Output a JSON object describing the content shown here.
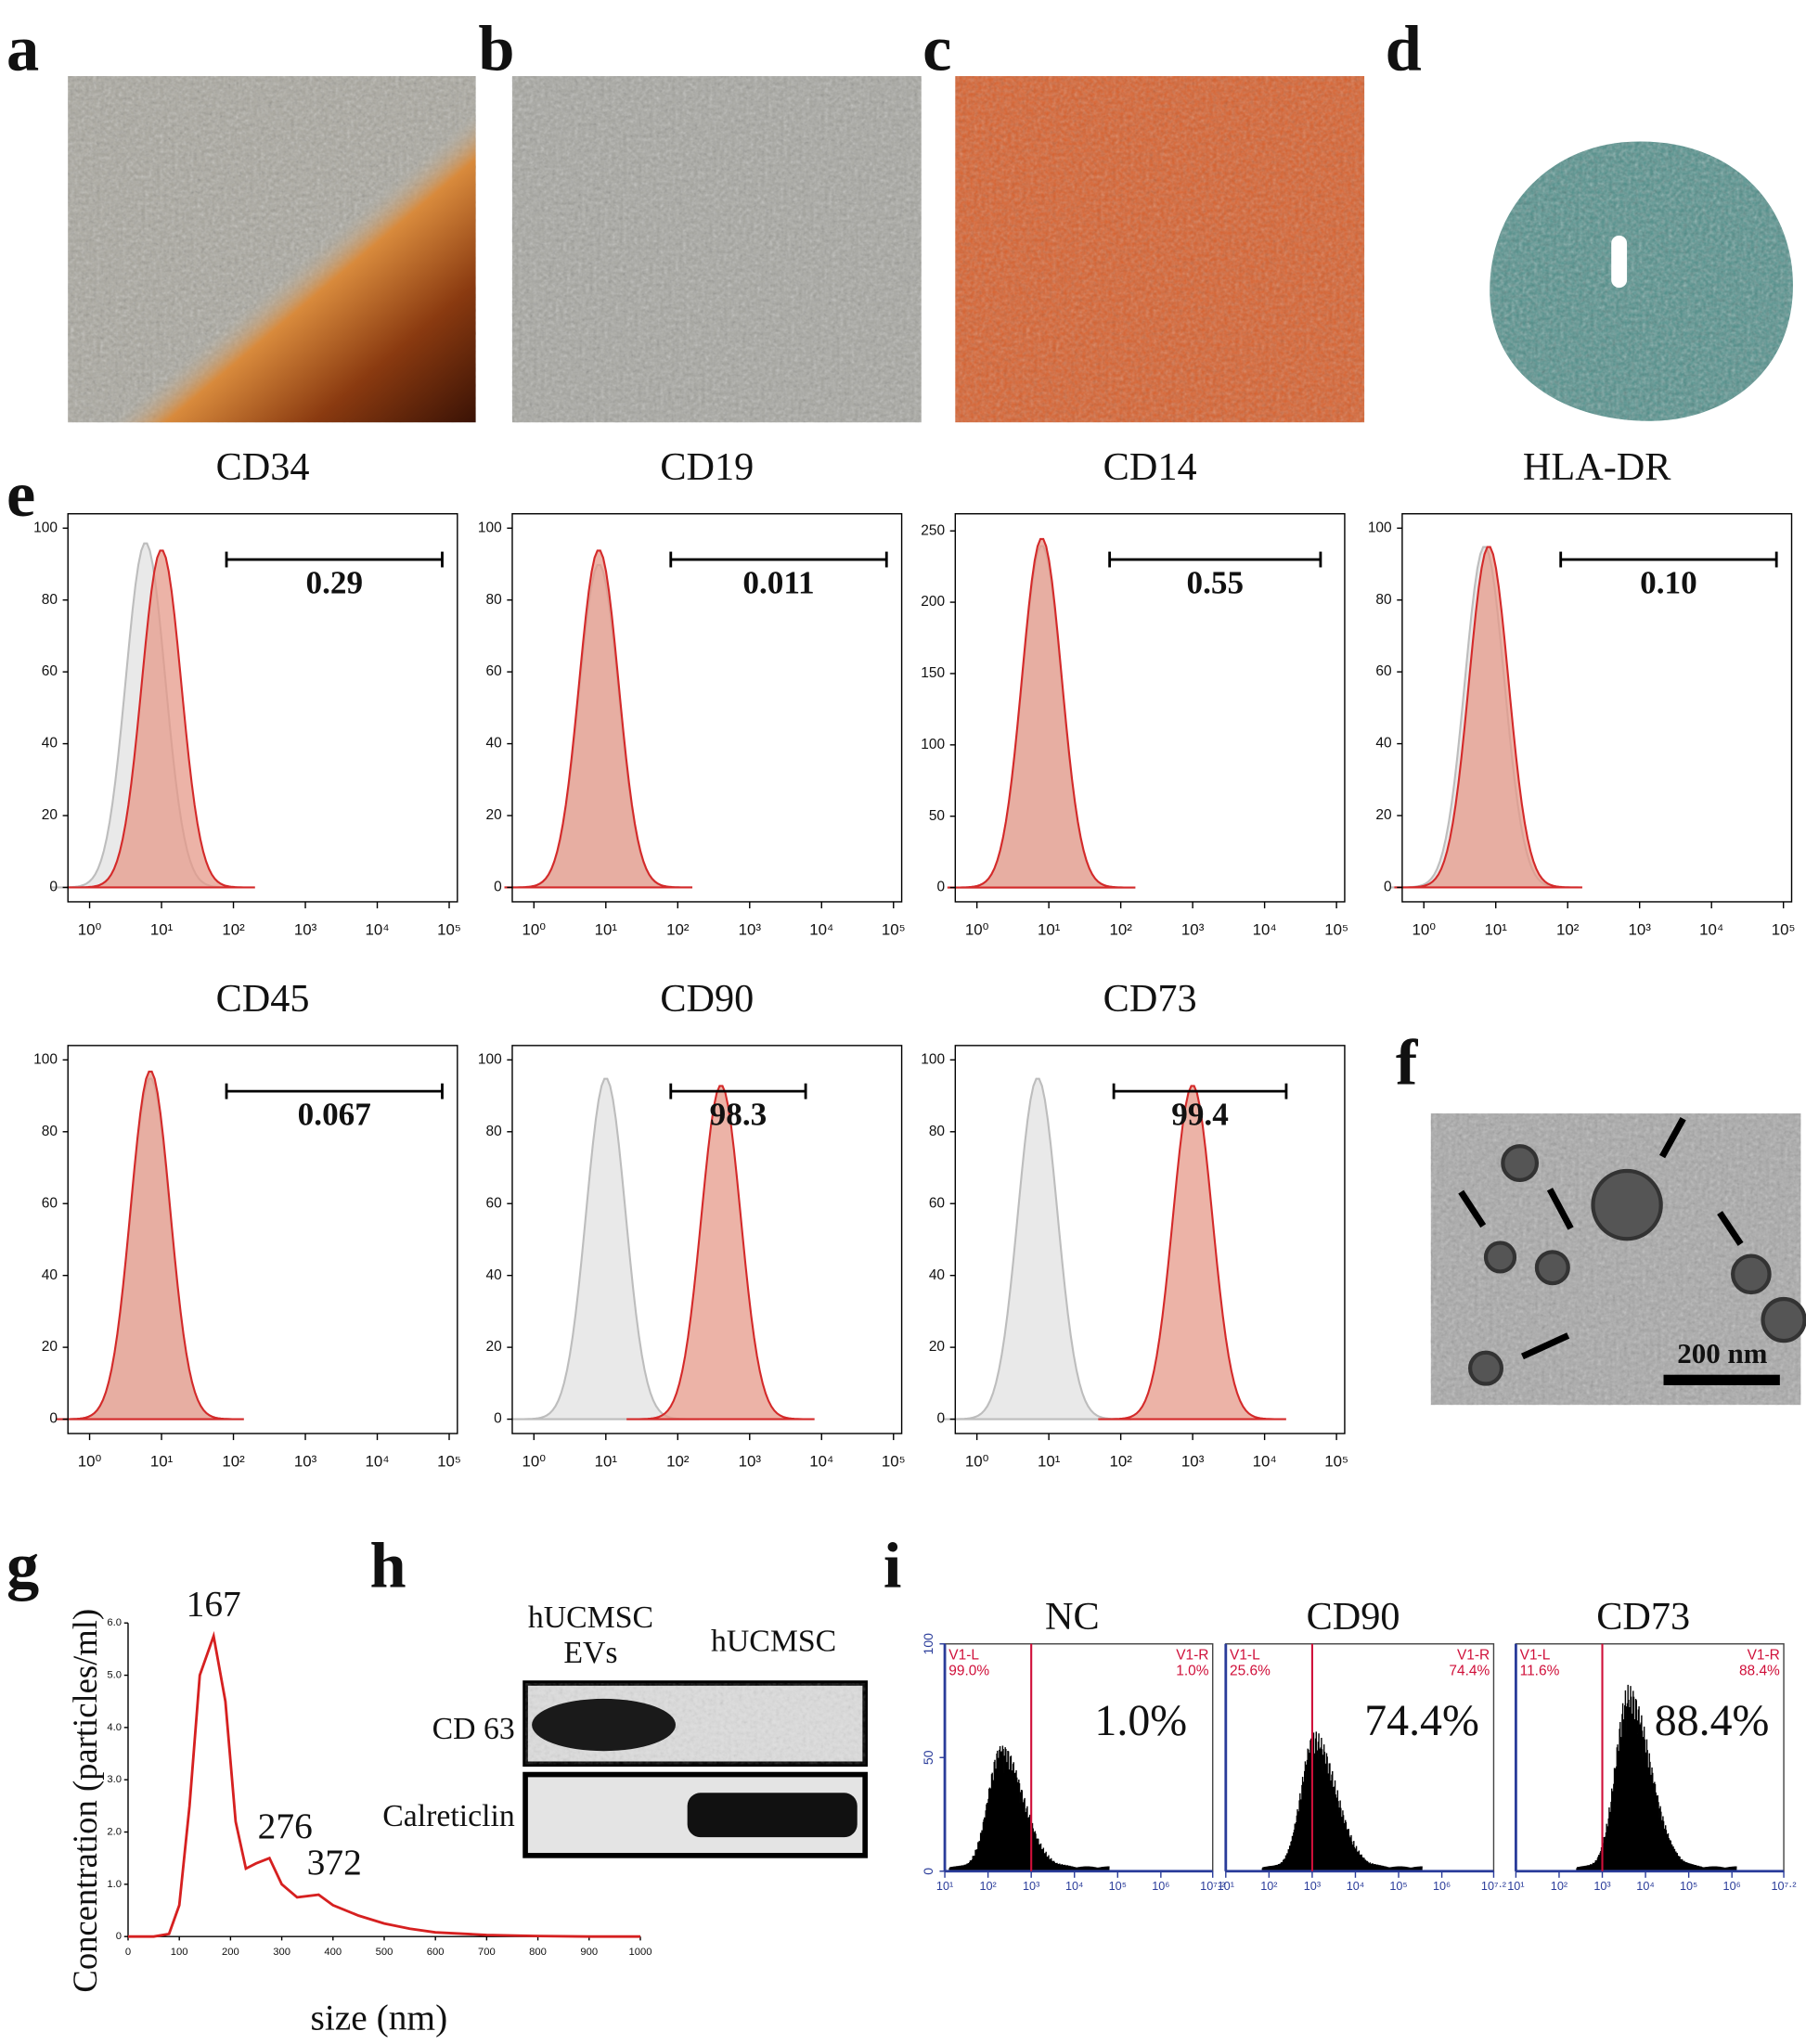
{
  "panel_labels": [
    "a",
    "b",
    "c",
    "d",
    "e",
    "f",
    "g",
    "h",
    "i"
  ],
  "flow_cytometry": {
    "xlim": [
      0.5,
      130000
    ],
    "xticks": [
      {
        "value": 1,
        "label": "10⁰"
      },
      {
        "value": 10,
        "label": "10¹"
      },
      {
        "value": 100,
        "label": "10²"
      },
      {
        "value": 1000,
        "label": "10³"
      },
      {
        "value": 10000,
        "label": "10⁴"
      },
      {
        "value": 100000,
        "label": "10⁵"
      }
    ],
    "histograms": [
      {
        "title": "CD34",
        "ylim": [
          -4,
          104
        ],
        "yticks": [
          0,
          20,
          40,
          60,
          80,
          100
        ],
        "gate": [
          80,
          80000
        ],
        "gate_label": "0.29",
        "control": {
          "x": 6,
          "y": 96
        },
        "stained": {
          "x": 10,
          "y": 94
        }
      },
      {
        "title": "CD19",
        "ylim": [
          -4,
          104
        ],
        "yticks": [
          0,
          20,
          40,
          60,
          80,
          100
        ],
        "gate": [
          80,
          80000
        ],
        "gate_label": "0.011",
        "control": {
          "x": 8,
          "y": 90
        },
        "stained": {
          "x": 8,
          "y": 94
        }
      },
      {
        "title": "CD14",
        "ylim": [
          -10,
          262
        ],
        "yticks": [
          0,
          50,
          100,
          150,
          200,
          250
        ],
        "gate": [
          70,
          60000
        ],
        "gate_label": "0.55",
        "control": {
          "x": 8,
          "y": 240
        },
        "stained": {
          "x": 8,
          "y": 245
        }
      },
      {
        "title": "HLA-DR",
        "ylim": [
          -4,
          104
        ],
        "yticks": [
          0,
          20,
          40,
          60,
          80,
          100
        ],
        "gate": [
          80,
          80000
        ],
        "gate_label": "0.10",
        "control": {
          "x": 7,
          "y": 95
        },
        "stained": {
          "x": 8,
          "y": 95
        }
      },
      {
        "title": "CD45",
        "ylim": [
          -4,
          104
        ],
        "yticks": [
          0,
          20,
          40,
          60,
          80,
          100
        ],
        "gate": [
          80,
          80000
        ],
        "gate_label": "0.067",
        "control": {
          "x": 7,
          "y": 95
        },
        "stained": {
          "x": 7,
          "y": 97
        }
      },
      {
        "title": "CD90",
        "ylim": [
          -4,
          104
        ],
        "yticks": [
          0,
          20,
          40,
          60,
          80,
          100
        ],
        "gate": [
          80,
          6000
        ],
        "gate_label": "98.3",
        "control": {
          "x": 10,
          "y": 95
        },
        "stained": {
          "x": 400,
          "y": 93
        }
      },
      {
        "title": "CD73",
        "ylim": [
          -4,
          104
        ],
        "yticks": [
          0,
          20,
          40,
          60,
          80,
          100
        ],
        "gate": [
          80,
          20000
        ],
        "gate_label": "99.4",
        "control": {
          "x": 7,
          "y": 95
        },
        "stained": {
          "x": 1000,
          "y": 93
        }
      }
    ]
  },
  "tem": {
    "scale_bar": "200 nm"
  },
  "nta": {
    "type": "line",
    "xlabel": "size (nm)",
    "ylabel": "Concentration (particles/ml)",
    "xlim": [
      0,
      1000
    ],
    "xticks": [
      0,
      100,
      200,
      300,
      400,
      500,
      600,
      700,
      800,
      900,
      1000
    ],
    "ylim": [
      0,
      6
    ],
    "yticks": [
      0,
      {
        "value": 1,
        "label": "1.0"
      },
      {
        "value": 2,
        "label": "2.0"
      },
      {
        "value": 3,
        "label": "3.0"
      },
      {
        "value": 4,
        "label": "4.0"
      },
      {
        "value": 5,
        "label": "5.0"
      },
      {
        "value": 6,
        "label": "6.0"
      }
    ],
    "color": "#d62020",
    "x": [
      0,
      50,
      80,
      100,
      120,
      140,
      167,
      190,
      210,
      230,
      250,
      276,
      300,
      330,
      372,
      400,
      450,
      500,
      550,
      600,
      700,
      800,
      900,
      1000
    ],
    "values": [
      0,
      0,
      0.05,
      0.6,
      2.5,
      5.0,
      5.75,
      4.5,
      2.2,
      1.3,
      1.4,
      1.5,
      1.0,
      0.75,
      0.8,
      0.6,
      0.4,
      0.25,
      0.15,
      0.08,
      0.03,
      0.01,
      0,
      0
    ],
    "peak_labels": [
      167,
      276,
      372
    ]
  },
  "western_blot": {
    "lanes": [
      [
        "hUCMSC",
        "EVs"
      ],
      [
        "hUCMSC"
      ]
    ],
    "bands": [
      "CD 63",
      "Calreticlin"
    ]
  },
  "flow_i": {
    "xlim": [
      10,
      15848932
    ],
    "xticks": [
      {
        "value": 10,
        "label": "10¹"
      },
      {
        "value": 100,
        "label": "10²"
      },
      {
        "value": 1000,
        "label": "10³"
      },
      {
        "value": 10000,
        "label": "10⁴"
      },
      {
        "value": 100000,
        "label": "10⁵"
      },
      {
        "value": 1000000,
        "label": "10⁶"
      },
      {
        "value": 15848932,
        "label": "10⁷·²"
      }
    ],
    "ylim": [
      0,
      100
    ],
    "yticks": [
      0,
      50,
      100
    ],
    "plots": [
      {
        "title": "NC",
        "gate": 1000,
        "left_label": "V1-L",
        "left_percent": "99.0%",
        "right_label": "V1-R",
        "right_percent": "1.0%",
        "positive": "1.0%",
        "peak": {
          "x": 200,
          "y": 55
        }
      },
      {
        "title": "CD90",
        "gate": 1000,
        "left_label": "V1-L",
        "left_percent": "25.6%",
        "right_label": "V1-R",
        "right_percent": "74.4%",
        "positive": "74.4%",
        "peak": {
          "x": 1100,
          "y": 60
        }
      },
      {
        "title": "CD73",
        "gate": 1000,
        "left_label": "V1-L",
        "left_percent": "11.6%",
        "right_label": "V1-R",
        "right_percent": "88.4%",
        "positive": "88.4%",
        "peak": {
          "x": 4000,
          "y": 80
        }
      }
    ]
  }
}
